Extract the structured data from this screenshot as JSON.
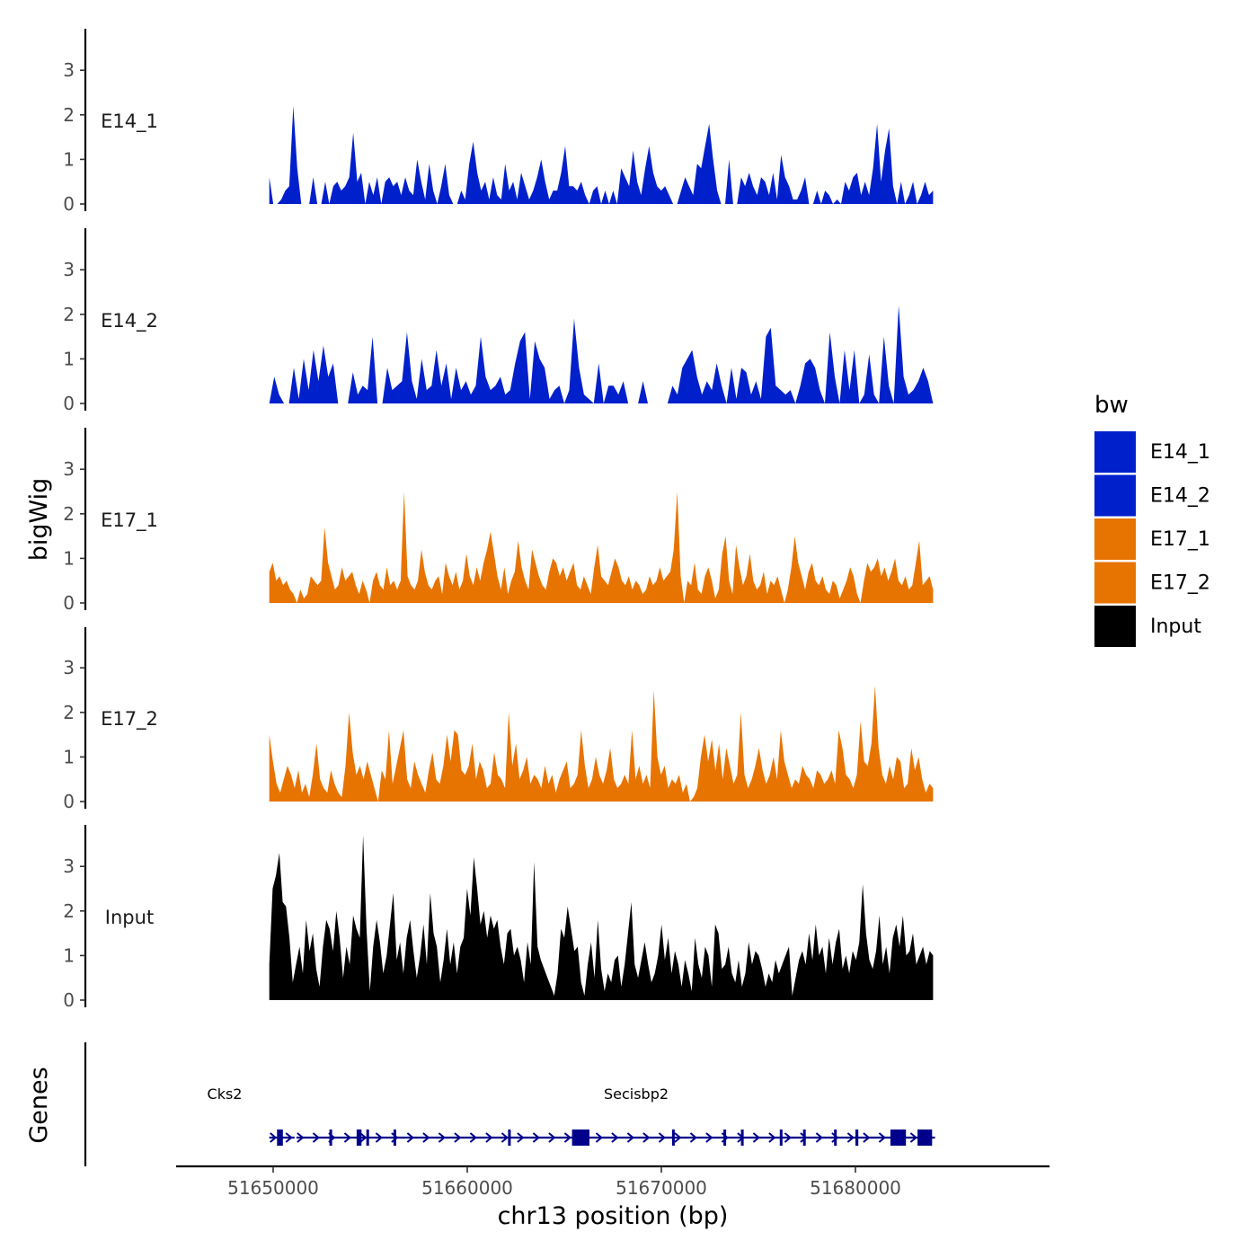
{
  "chart_data": {
    "type": "area",
    "title": "",
    "xlabel": "chr13 position (bp)",
    "ylabel": "bigWig",
    "genes_axis_label": "Genes",
    "chromosome": "chr13",
    "xlim": [
      51645000,
      51690000
    ],
    "data_range": [
      51649800,
      51684000
    ],
    "x_ticks": [
      51650000,
      51660000,
      51670000,
      51680000
    ],
    "x_tick_labels": [
      "51650000",
      "51660000",
      "51670000",
      "51680000"
    ],
    "ylim": [
      0,
      4
    ],
    "y_ticks": [
      0,
      1,
      2,
      3
    ],
    "y_tick_labels": [
      "0",
      "1",
      "2",
      "3"
    ],
    "legend": {
      "title": "bw",
      "position": "right",
      "entries": [
        {
          "label": "E14_1",
          "color": "#0020CC"
        },
        {
          "label": "E14_2",
          "color": "#0020CC"
        },
        {
          "label": "E17_1",
          "color": "#E87400"
        },
        {
          "label": "E17_2",
          "color": "#E87400"
        },
        {
          "label": "Input",
          "color": "#000000"
        }
      ]
    },
    "series": [
      {
        "name": "E14_1",
        "color": "#0020CC",
        "values": [
          0.6,
          0,
          0,
          0.1,
          0.3,
          0.4,
          2.2,
          0.8,
          0,
          0,
          0,
          0.6,
          0,
          0,
          0.5,
          0,
          0.4,
          0.5,
          0.3,
          0.4,
          0.6,
          1.6,
          0.5,
          0.7,
          0,
          0.5,
          0.2,
          0.6,
          0,
          0.5,
          0.6,
          0.4,
          0.5,
          0.2,
          0.6,
          0.3,
          0.2,
          1.0,
          0.5,
          0.1,
          0.9,
          0.3,
          0,
          0.4,
          0.9,
          0.2,
          0,
          0,
          0.3,
          0.1,
          0.9,
          1.4,
          0.7,
          0.3,
          0.5,
          0.1,
          0.6,
          0.2,
          0.1,
          0.9,
          0.3,
          0.5,
          0.1,
          0.7,
          0.4,
          0.1,
          0.3,
          0.6,
          1.0,
          0.5,
          0.1,
          0.3,
          0.3,
          0.7,
          1.3,
          0.4,
          0.4,
          0.3,
          0.5,
          0.2,
          0,
          0.3,
          0.4,
          0,
          0.3,
          0,
          0.3,
          0,
          0.8,
          0.6,
          0.4,
          1.2,
          0.5,
          0.2,
          0.8,
          1.3,
          0.7,
          0.4,
          0.3,
          0.4,
          0.2,
          0,
          0,
          0.3,
          0.6,
          0.4,
          0.2,
          0.9,
          0.8,
          1.3,
          1.8,
          1.0,
          0.3,
          0,
          0,
          1.0,
          0,
          0,
          0.6,
          0.4,
          0.7,
          0.4,
          0.2,
          0.6,
          0.5,
          0.2,
          0.7,
          0.1,
          1.1,
          0.6,
          0.4,
          0.1,
          0.1,
          0.3,
          0.6,
          0,
          0,
          0.3,
          0,
          0.3,
          0.2,
          0,
          0.1,
          0,
          0.5,
          0.3,
          0.6,
          0.7,
          0.2,
          0.5,
          0.2,
          0.8,
          1.8,
          0.5,
          1.2,
          1.7,
          0.4,
          0,
          0.5,
          0,
          0.2,
          0.5,
          0,
          0.2,
          0.5,
          0.2,
          0.3
        ]
      },
      {
        "name": "E14_2",
        "color": "#0020CC",
        "values": [
          0,
          0.6,
          0.2,
          0,
          0,
          0.8,
          0.1,
          1.0,
          0.3,
          1.2,
          0.5,
          1.3,
          0.6,
          0.9,
          0,
          0,
          0,
          0.7,
          0.2,
          0.4,
          0.3,
          1.5,
          0,
          0,
          0.8,
          0.3,
          0.4,
          0.5,
          1.6,
          0.5,
          0.1,
          1.0,
          0.3,
          0.4,
          1.2,
          0.4,
          0.9,
          0.1,
          0.8,
          0.3,
          0.5,
          0.2,
          0.4,
          1.5,
          0.6,
          0.3,
          0.4,
          0.6,
          0.2,
          0.3,
          0.9,
          1.4,
          1.6,
          0.1,
          1.4,
          1.0,
          0.8,
          0.1,
          0.3,
          0.4,
          0,
          0.3,
          1.9,
          0.8,
          0.2,
          0.1,
          0,
          0.9,
          0,
          0.4,
          0.4,
          0.2,
          0.5,
          0,
          0,
          0,
          0.5,
          0,
          0,
          0,
          0,
          0,
          0.4,
          0.2,
          0.8,
          1.0,
          1.2,
          0.6,
          0.2,
          0.5,
          0.3,
          0.9,
          0.4,
          0,
          0.8,
          0.1,
          0.8,
          0.7,
          0.2,
          0.5,
          0.1,
          1.5,
          1.7,
          0.4,
          0.3,
          0.2,
          0.3,
          0,
          0.4,
          0.9,
          1.0,
          0.8,
          0.3,
          0,
          1.6,
          0.6,
          0,
          1.2,
          0.3,
          1.2,
          0,
          0.2,
          1.1,
          0.2,
          0,
          1.5,
          0.4,
          0,
          2.2,
          0.6,
          0.2,
          0.3,
          0.5,
          0.8,
          0.5,
          0
        ]
      },
      {
        "name": "E17_1",
        "color": "#E87400",
        "values": [
          0.7,
          0.9,
          0.5,
          0.6,
          0.4,
          0.5,
          0.3,
          0.2,
          0,
          0.3,
          0.1,
          0.2,
          0.6,
          0.5,
          0.4,
          0.5,
          1.7,
          0.9,
          0.6,
          0.3,
          0.4,
          0.8,
          0.5,
          0.6,
          0.7,
          0.4,
          0.2,
          0.5,
          0.3,
          0,
          0.5,
          0.7,
          0.4,
          0.3,
          0.8,
          0.4,
          0.5,
          0.3,
          0.5,
          2.5,
          0.6,
          0.4,
          0.3,
          0.5,
          1.2,
          0.7,
          0.4,
          0.3,
          0.5,
          0.6,
          0.2,
          0.9,
          0.6,
          0.4,
          0.7,
          0.3,
          0.5,
          1.1,
          0.6,
          0.4,
          0.8,
          0.5,
          0.9,
          1.2,
          1.6,
          1.1,
          0.6,
          0.3,
          0.8,
          0.2,
          0.5,
          0.7,
          1.4,
          0.8,
          0.5,
          0.3,
          1.2,
          0.9,
          0.6,
          0.4,
          0.3,
          0.7,
          1.0,
          0.9,
          0.6,
          0.8,
          0.5,
          0.7,
          0.9,
          0.4,
          0.3,
          0.6,
          0.4,
          0.2,
          0.8,
          1.3,
          0.6,
          0.5,
          0.4,
          0.7,
          1.0,
          0.8,
          0.5,
          0.4,
          0.6,
          0.3,
          0.5,
          0.4,
          0.2,
          0.3,
          0.6,
          0.4,
          0.5,
          0.8,
          0.5,
          0.6,
          0.7,
          1.2,
          2.5,
          0.6,
          0,
          0.5,
          0.4,
          0.9,
          0.3,
          0.2,
          0.6,
          0.8,
          0.5,
          0.1,
          0.3,
          1.1,
          1.5,
          0.5,
          0.2,
          1.3,
          0.8,
          0.4,
          0.6,
          1.1,
          0.5,
          0.3,
          0.4,
          0.7,
          0.2,
          0.5,
          0.4,
          0.6,
          0.3,
          0,
          0.3,
          0.8,
          1.5,
          0.9,
          0.6,
          0.3,
          0.7,
          0.9,
          0.5,
          0.4,
          0.6,
          0.3,
          0.2,
          0.5,
          0.4,
          0.1,
          0.3,
          0.5,
          0.8,
          0.6,
          0.2,
          0,
          0.5,
          0.9,
          0.7,
          0.8,
          1.0,
          0.6,
          0.8,
          0.5,
          0.7,
          1.0,
          0.5,
          0.4,
          0.6,
          0.3,
          0.4,
          0.9,
          1.4,
          0.4,
          0.5,
          0.6,
          0.3
        ]
      },
      {
        "name": "E17_2",
        "color": "#E87400",
        "values": [
          1.5,
          0.9,
          0.4,
          0.2,
          0.5,
          0.8,
          0.6,
          0.3,
          0.7,
          0.2,
          0.4,
          0.1,
          0.6,
          1.3,
          0.5,
          0.3,
          0.2,
          0.7,
          0.4,
          0.2,
          0.1,
          0.8,
          2.0,
          1.1,
          0.6,
          0.8,
          0.5,
          0.9,
          0.6,
          0.3,
          0,
          0.7,
          0.5,
          1.6,
          0.4,
          0.8,
          1.2,
          1.6,
          0.5,
          0.3,
          0.9,
          0.6,
          0.4,
          0.2,
          0.7,
          1.1,
          0.5,
          0.4,
          0.8,
          1.5,
          0.9,
          1.6,
          1.5,
          0.7,
          0.6,
          0.8,
          1.3,
          0.5,
          0.9,
          0.7,
          0.3,
          0.4,
          1.1,
          0.6,
          0.5,
          0.3,
          2.0,
          0.8,
          1.3,
          0.5,
          0.7,
          1.0,
          0.4,
          0.6,
          0.5,
          0.3,
          0.8,
          0.4,
          0.6,
          0.2,
          0.5,
          0.7,
          0.9,
          0.3,
          0.4,
          0.6,
          1.6,
          0.8,
          0.3,
          0.5,
          1.0,
          0.6,
          0.4,
          0.7,
          1.2,
          0.5,
          0.3,
          0.4,
          0.6,
          0.4,
          1.6,
          0.5,
          0.8,
          0.4,
          0.6,
          0.3,
          2.5,
          1.0,
          0.6,
          0.8,
          0.3,
          0.5,
          0.4,
          0.6,
          0.2,
          0.4,
          0,
          0.1,
          0.3,
          1.0,
          1.5,
          0.9,
          1.4,
          0.7,
          1.3,
          0.5,
          1.2,
          0.8,
          0.4,
          0.6,
          2.0,
          0.6,
          0.3,
          0.5,
          0.8,
          1.2,
          0.7,
          0.4,
          0.6,
          1.0,
          0.5,
          1.6,
          0.9,
          0.6,
          0.3,
          0.5,
          0.4,
          0.8,
          0.6,
          0.5,
          0.3,
          0.7,
          0.6,
          0.4,
          0.5,
          0.7,
          0.4,
          1.6,
          1.2,
          0.6,
          0.5,
          0.3,
          0.6,
          1.8,
          0.9,
          0.8,
          1.3,
          2.6,
          1.2,
          0.6,
          0.4,
          0.8,
          0.5,
          1.0,
          0.9,
          0.3,
          0.4,
          1.2,
          0.7,
          1.0,
          0.5,
          0.2,
          0.4,
          0.3
        ]
      },
      {
        "name": "Input",
        "color": "#000000",
        "values": [
          0.8,
          2.5,
          2.8,
          3.3,
          2.2,
          2.1,
          1.4,
          0.4,
          0.8,
          1.2,
          0.6,
          1.8,
          1.1,
          1.5,
          0.7,
          0.3,
          1.2,
          1.8,
          1.6,
          1.1,
          2.0,
          1.4,
          0.5,
          1.2,
          0.8,
          1.9,
          1.6,
          1.4,
          3.7,
          1.6,
          0.2,
          1.2,
          1.8,
          1.3,
          0.6,
          1.0,
          1.7,
          2.4,
          0.9,
          1.3,
          0.6,
          1.4,
          1.8,
          1.1,
          0.5,
          1.0,
          1.7,
          0.8,
          2.4,
          1.5,
          1.2,
          0.4,
          0.9,
          1.6,
          0.8,
          1.3,
          0.6,
          1.2,
          1.4,
          2.5,
          1.9,
          3.2,
          2.5,
          1.7,
          2.0,
          1.4,
          1.9,
          1.6,
          1.8,
          1.2,
          0.8,
          1.5,
          1.6,
          1.0,
          1.2,
          0.9,
          0.4,
          1.3,
          0.8,
          3.1,
          1.2,
          0.9,
          0.7,
          0.5,
          0.3,
          0.1,
          0.6,
          1.6,
          1.4,
          2.1,
          1.6,
          1.1,
          1.2,
          0.4,
          0.1,
          0.8,
          1.3,
          0.5,
          1.8,
          0.7,
          0.2,
          0.6,
          0.4,
          0.9,
          1.0,
          0.3,
          0.8,
          1.5,
          2.2,
          0.8,
          0.5,
          0.9,
          1.3,
          0.8,
          0.4,
          0.6,
          1.0,
          1.7,
          0.9,
          1.4,
          0.6,
          1.1,
          0.8,
          0.3,
          0.9,
          0.6,
          0.2,
          1.4,
          0.8,
          0.5,
          1.2,
          1.0,
          0.3,
          1.7,
          1.5,
          0.7,
          0.8,
          1.2,
          0.6,
          0.4,
          0.9,
          0.3,
          0.6,
          1.3,
          0.8,
          1.1,
          1.0,
          0.7,
          0.3,
          0.6,
          0.4,
          0.9,
          0.6,
          0.8,
          1.0,
          1.2,
          0.1,
          0.5,
          0.9,
          1.1,
          0.8,
          1.5,
          0.9,
          1.7,
          1.0,
          1.2,
          0.6,
          1.4,
          0.8,
          1.3,
          1.6,
          0.7,
          1.0,
          0.6,
          1.1,
          0.9,
          1.3,
          2.6,
          1.5,
          0.9,
          0.7,
          1.1,
          1.9,
          0.8,
          1.2,
          0.6,
          1.4,
          1.7,
          1.2,
          1.9,
          1.0,
          1.1,
          1.5,
          0.8,
          1.0,
          1.2,
          0.8,
          1.1,
          1.0
        ]
      }
    ],
    "genes": [
      {
        "name": "Cks2",
        "start": 51649800,
        "end": 51651100,
        "strand": "+",
        "exons": [
          [
            51650200,
            51650500
          ]
        ]
      },
      {
        "name": "Secisbp2",
        "start": 51651200,
        "end": 51684100,
        "strand": "+",
        "exons": [
          [
            51652900,
            51653000
          ],
          [
            51654300,
            51654550
          ],
          [
            51654800,
            51654900
          ],
          [
            51656200,
            51656300
          ],
          [
            51662100,
            51662200
          ],
          [
            51665400,
            51666300
          ],
          [
            51670550,
            51670650
          ],
          [
            51673200,
            51673300
          ],
          [
            51674100,
            51674200
          ],
          [
            51676100,
            51676200
          ],
          [
            51677300,
            51677400
          ],
          [
            51678900,
            51679000
          ],
          [
            51680000,
            51680150
          ],
          [
            51681800,
            51682600
          ],
          [
            51683200,
            51683950
          ]
        ]
      }
    ]
  }
}
